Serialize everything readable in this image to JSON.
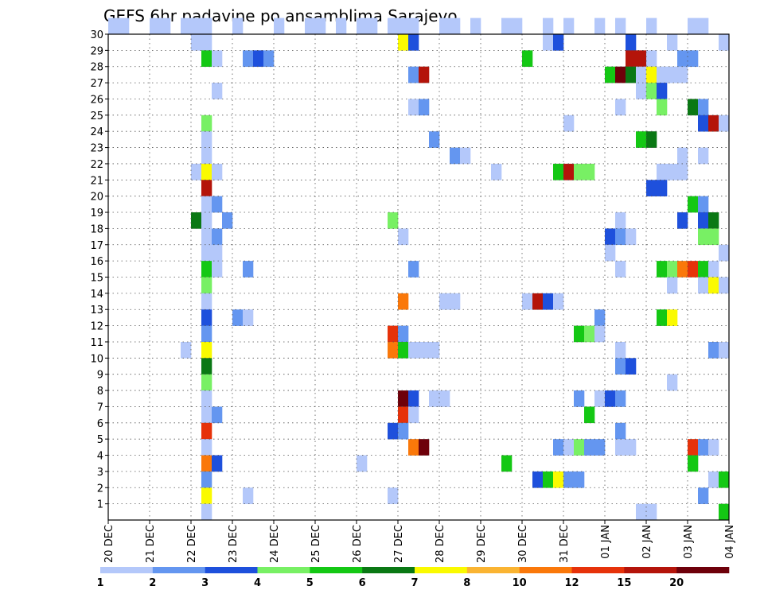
{
  "chart_data": {
    "type": "heatmap",
    "title": "GEFS 6hr padavine po ansamblima Sarajevo",
    "xlabel": "",
    "ylabel": "",
    "x_tick_labels": [
      "20 DEC",
      "21 DEC",
      "22 DEC",
      "23 DEC",
      "24 DEC",
      "25 DEC",
      "26 DEC",
      "27 DEC",
      "28 DEC",
      "29 DEC",
      "30 DEC",
      "31 DEC",
      "01 JAN",
      "02 JAN",
      "03 JAN",
      "04 JAN"
    ],
    "y_tick_labels": [
      "1",
      "2",
      "3",
      "4",
      "5",
      "6",
      "7",
      "8",
      "9",
      "10",
      "11",
      "12",
      "13",
      "14",
      "15",
      "16",
      "17",
      "18",
      "19",
      "20",
      "21",
      "22",
      "23",
      "24",
      "25",
      "26",
      "27",
      "28",
      "29",
      "30"
    ],
    "x_unit": "6-hour steps from 20 DEC 00z (4 per day)",
    "y_unit": "ensemble member",
    "grid": true,
    "colorbar": {
      "labels": [
        "1",
        "2",
        "3",
        "4",
        "5",
        "6",
        "7",
        "8",
        "10",
        "12",
        "15",
        "20"
      ],
      "colors": [
        "#b4c8fa",
        "#6496f0",
        "#1e50dc",
        "#78f064",
        "#14c814",
        "#0a7814",
        "#fafa00",
        "#fab432",
        "#fa780a",
        "#e6320a",
        "#b4140a",
        "#6e000a"
      ]
    },
    "cells": [
      [
        30,
        0,
        1
      ],
      [
        30,
        1,
        1
      ],
      [
        30,
        4,
        1
      ],
      [
        30,
        5,
        1
      ],
      [
        30,
        7,
        1
      ],
      [
        30,
        8,
        1
      ],
      [
        30,
        9,
        1
      ],
      [
        30,
        12,
        1
      ],
      [
        30,
        16,
        1
      ],
      [
        30,
        19,
        1
      ],
      [
        30,
        20,
        1
      ],
      [
        30,
        22,
        1
      ],
      [
        30,
        24,
        1
      ],
      [
        30,
        25,
        1
      ],
      [
        30,
        27,
        1
      ],
      [
        30,
        28,
        1
      ],
      [
        30,
        29,
        1
      ],
      [
        30,
        32,
        1
      ],
      [
        30,
        33,
        1
      ],
      [
        30,
        35,
        1
      ],
      [
        30,
        38,
        1
      ],
      [
        30,
        39,
        1
      ],
      [
        30,
        42,
        1
      ],
      [
        30,
        44,
        1
      ],
      [
        30,
        47,
        1
      ],
      [
        30,
        49,
        1
      ],
      [
        30,
        52,
        1
      ],
      [
        30,
        56,
        1
      ],
      [
        30,
        57,
        1
      ],
      [
        30,
        60,
        1
      ],
      [
        29,
        8,
        1
      ],
      [
        29,
        9,
        1
      ],
      [
        29,
        28,
        7
      ],
      [
        29,
        29,
        3
      ],
      [
        29,
        42,
        1
      ],
      [
        29,
        43,
        3
      ],
      [
        29,
        50,
        3
      ],
      [
        29,
        54,
        1
      ],
      [
        29,
        59,
        1
      ],
      [
        28,
        9,
        5
      ],
      [
        28,
        10,
        1
      ],
      [
        28,
        13,
        2
      ],
      [
        28,
        14,
        3
      ],
      [
        28,
        15,
        2
      ],
      [
        28,
        40,
        5
      ],
      [
        28,
        50,
        11
      ],
      [
        28,
        51,
        11
      ],
      [
        28,
        52,
        1
      ],
      [
        28,
        55,
        2
      ],
      [
        28,
        56,
        2
      ],
      [
        27,
        29,
        2
      ],
      [
        27,
        30,
        11
      ],
      [
        27,
        48,
        5
      ],
      [
        27,
        49,
        12
      ],
      [
        27,
        50,
        6
      ],
      [
        27,
        51,
        1
      ],
      [
        27,
        52,
        7
      ],
      [
        27,
        53,
        1
      ],
      [
        27,
        54,
        1
      ],
      [
        27,
        55,
        1
      ],
      [
        26,
        10,
        1
      ],
      [
        26,
        51,
        1
      ],
      [
        26,
        52,
        4
      ],
      [
        26,
        53,
        3
      ],
      [
        25,
        29,
        1
      ],
      [
        25,
        30,
        2
      ],
      [
        25,
        49,
        1
      ],
      [
        25,
        53,
        4
      ],
      [
        25,
        56,
        6
      ],
      [
        25,
        57,
        2
      ],
      [
        25,
        60,
        3
      ],
      [
        24,
        9,
        4
      ],
      [
        24,
        44,
        1
      ],
      [
        24,
        57,
        3
      ],
      [
        24,
        58,
        11
      ],
      [
        24,
        59,
        1
      ],
      [
        23,
        9,
        1
      ],
      [
        23,
        31,
        2
      ],
      [
        23,
        51,
        5
      ],
      [
        23,
        52,
        6
      ],
      [
        22,
        9,
        1
      ],
      [
        22,
        33,
        2
      ],
      [
        22,
        34,
        1
      ],
      [
        22,
        55,
        1
      ],
      [
        22,
        57,
        1
      ],
      [
        21,
        8,
        1
      ],
      [
        21,
        9,
        7
      ],
      [
        21,
        10,
        1
      ],
      [
        21,
        37,
        1
      ],
      [
        21,
        43,
        5
      ],
      [
        21,
        44,
        11
      ],
      [
        21,
        45,
        4
      ],
      [
        21,
        46,
        4
      ],
      [
        21,
        53,
        1
      ],
      [
        21,
        54,
        1
      ],
      [
        21,
        55,
        1
      ],
      [
        20,
        9,
        11
      ],
      [
        20,
        52,
        3
      ],
      [
        20,
        53,
        3
      ],
      [
        19,
        9,
        1
      ],
      [
        19,
        10,
        2
      ],
      [
        19,
        56,
        5
      ],
      [
        19,
        57,
        2
      ],
      [
        18,
        8,
        6
      ],
      [
        18,
        9,
        1
      ],
      [
        18,
        11,
        2
      ],
      [
        18,
        27,
        4
      ],
      [
        18,
        49,
        1
      ],
      [
        18,
        55,
        3
      ],
      [
        18,
        57,
        3
      ],
      [
        18,
        58,
        6
      ],
      [
        17,
        9,
        1
      ],
      [
        17,
        10,
        2
      ],
      [
        17,
        28,
        1
      ],
      [
        17,
        48,
        3
      ],
      [
        17,
        49,
        2
      ],
      [
        17,
        50,
        1
      ],
      [
        17,
        57,
        4
      ],
      [
        17,
        58,
        4
      ],
      [
        16,
        9,
        1
      ],
      [
        16,
        10,
        1
      ],
      [
        16,
        48,
        1
      ],
      [
        16,
        59,
        1
      ],
      [
        15,
        9,
        5
      ],
      [
        15,
        10,
        1
      ],
      [
        15,
        13,
        2
      ],
      [
        15,
        29,
        2
      ],
      [
        15,
        49,
        1
      ],
      [
        15,
        53,
        5
      ],
      [
        15,
        54,
        4
      ],
      [
        15,
        55,
        9
      ],
      [
        15,
        56,
        10
      ],
      [
        15,
        57,
        5
      ],
      [
        15,
        58,
        1
      ],
      [
        15,
        60,
        1
      ],
      [
        14,
        9,
        4
      ],
      [
        14,
        54,
        1
      ],
      [
        14,
        57,
        1
      ],
      [
        14,
        58,
        7
      ],
      [
        14,
        59,
        1
      ],
      [
        13,
        9,
        1
      ],
      [
        13,
        28,
        9
      ],
      [
        13,
        32,
        1
      ],
      [
        13,
        33,
        1
      ],
      [
        13,
        40,
        1
      ],
      [
        13,
        41,
        11
      ],
      [
        13,
        42,
        3
      ],
      [
        13,
        43,
        1
      ],
      [
        12,
        9,
        3
      ],
      [
        12,
        12,
        2
      ],
      [
        12,
        13,
        1
      ],
      [
        12,
        47,
        2
      ],
      [
        12,
        53,
        5
      ],
      [
        12,
        54,
        7
      ],
      [
        11,
        9,
        2
      ],
      [
        11,
        27,
        10
      ],
      [
        11,
        28,
        2
      ],
      [
        11,
        45,
        5
      ],
      [
        11,
        46,
        4
      ],
      [
        11,
        47,
        1
      ],
      [
        10,
        7,
        1
      ],
      [
        10,
        9,
        7
      ],
      [
        10,
        27,
        9
      ],
      [
        10,
        28,
        5
      ],
      [
        10,
        29,
        1
      ],
      [
        10,
        30,
        1
      ],
      [
        10,
        31,
        1
      ],
      [
        10,
        49,
        1
      ],
      [
        10,
        58,
        2
      ],
      [
        10,
        59,
        1
      ],
      [
        9,
        9,
        6
      ],
      [
        9,
        49,
        2
      ],
      [
        9,
        50,
        3
      ],
      [
        8,
        9,
        4
      ],
      [
        8,
        54,
        1
      ],
      [
        7,
        9,
        1
      ],
      [
        7,
        28,
        12
      ],
      [
        7,
        29,
        3
      ],
      [
        7,
        31,
        1
      ],
      [
        7,
        32,
        1
      ],
      [
        7,
        45,
        2
      ],
      [
        7,
        47,
        1
      ],
      [
        7,
        48,
        3
      ],
      [
        7,
        49,
        2
      ],
      [
        6,
        9,
        1
      ],
      [
        6,
        10,
        2
      ],
      [
        6,
        28,
        10
      ],
      [
        6,
        29,
        1
      ],
      [
        6,
        46,
        5
      ],
      [
        5,
        9,
        10
      ],
      [
        5,
        27,
        3
      ],
      [
        5,
        28,
        2
      ],
      [
        5,
        49,
        2
      ],
      [
        4,
        9,
        1
      ],
      [
        4,
        29,
        9
      ],
      [
        4,
        30,
        12
      ],
      [
        4,
        43,
        2
      ],
      [
        4,
        44,
        1
      ],
      [
        4,
        45,
        4
      ],
      [
        4,
        46,
        2
      ],
      [
        4,
        47,
        2
      ],
      [
        4,
        49,
        1
      ],
      [
        4,
        50,
        1
      ],
      [
        4,
        56,
        10
      ],
      [
        4,
        57,
        2
      ],
      [
        4,
        58,
        1
      ],
      [
        4,
        60,
        1
      ],
      [
        3,
        9,
        9
      ],
      [
        3,
        10,
        3
      ],
      [
        3,
        24,
        1
      ],
      [
        3,
        38,
        5
      ],
      [
        3,
        56,
        5
      ],
      [
        2,
        9,
        2
      ],
      [
        2,
        41,
        3
      ],
      [
        2,
        42,
        5
      ],
      [
        2,
        43,
        7
      ],
      [
        2,
        44,
        2
      ],
      [
        2,
        45,
        2
      ],
      [
        2,
        58,
        1
      ],
      [
        2,
        59,
        5
      ],
      [
        2,
        60,
        2
      ],
      [
        1,
        9,
        7
      ],
      [
        1,
        13,
        1
      ],
      [
        1,
        27,
        1
      ],
      [
        1,
        57,
        2
      ],
      [
        0,
        9,
        1
      ],
      [
        0,
        51,
        1
      ],
      [
        0,
        52,
        1
      ],
      [
        0,
        59,
        5
      ],
      [
        0,
        60,
        10
      ]
    ]
  }
}
